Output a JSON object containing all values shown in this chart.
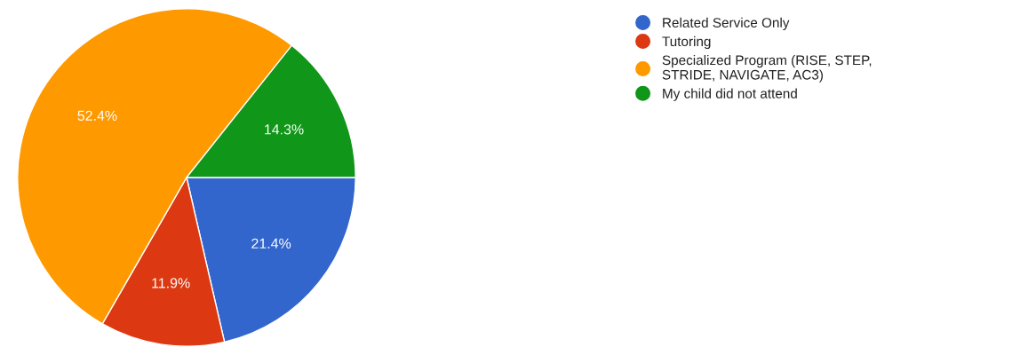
{
  "chart_data": {
    "type": "pie",
    "categories": [
      "Related Service Only",
      "Tutoring",
      "Specialized Program (RISE, STEP, STRIDE, NAVIGATE, AC3)",
      "My child did not attend"
    ],
    "values": [
      21.4,
      11.9,
      52.4,
      14.3
    ],
    "colors": [
      "#3366cc",
      "#dc3912",
      "#ff9900",
      "#109618"
    ],
    "value_labels": [
      "21.4%",
      "11.9%",
      "52.4%",
      "14.3%"
    ],
    "legend": "right"
  }
}
